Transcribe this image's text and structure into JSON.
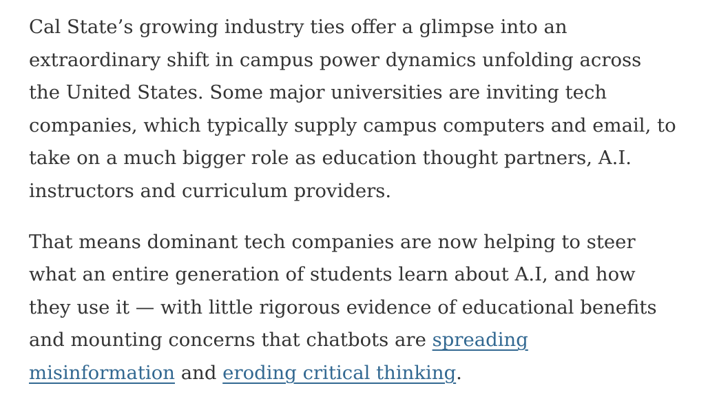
{
  "colors": {
    "text": "#333333",
    "link": "#326891",
    "background": "#ffffff"
  },
  "article": {
    "paragraphs": [
      {
        "lines": [
          [
            {
              "text": "Cal State’s growing industry ties offer a glimpse into an"
            }
          ],
          [
            {
              "text": "extraordinary shift in campus power dynamics unfolding across"
            }
          ],
          [
            {
              "text": "the United States. Some major universities are inviting tech"
            }
          ],
          [
            {
              "text": "companies, which typically supply campus computers and email, to"
            }
          ],
          [
            {
              "text": "take on a much bigger role as education thought partners, A.I."
            }
          ],
          [
            {
              "text": "instructors and curriculum providers."
            }
          ]
        ]
      },
      {
        "lines": [
          [
            {
              "text": "That means dominant tech companies are now helping to steer"
            }
          ],
          [
            {
              "text": "what an entire generation of students learn about A.I, and how"
            }
          ],
          [
            {
              "text": "they use it — with little rigorous evidence of educational benefits"
            }
          ],
          [
            {
              "text": "and mounting concerns that chatbots are "
            },
            {
              "text": "spreading",
              "link": true
            }
          ],
          [
            {
              "text": "misinformation",
              "link": true
            },
            {
              "text": " and "
            },
            {
              "text": "eroding critical thinking",
              "link": true
            },
            {
              "text": "."
            }
          ]
        ]
      }
    ]
  }
}
